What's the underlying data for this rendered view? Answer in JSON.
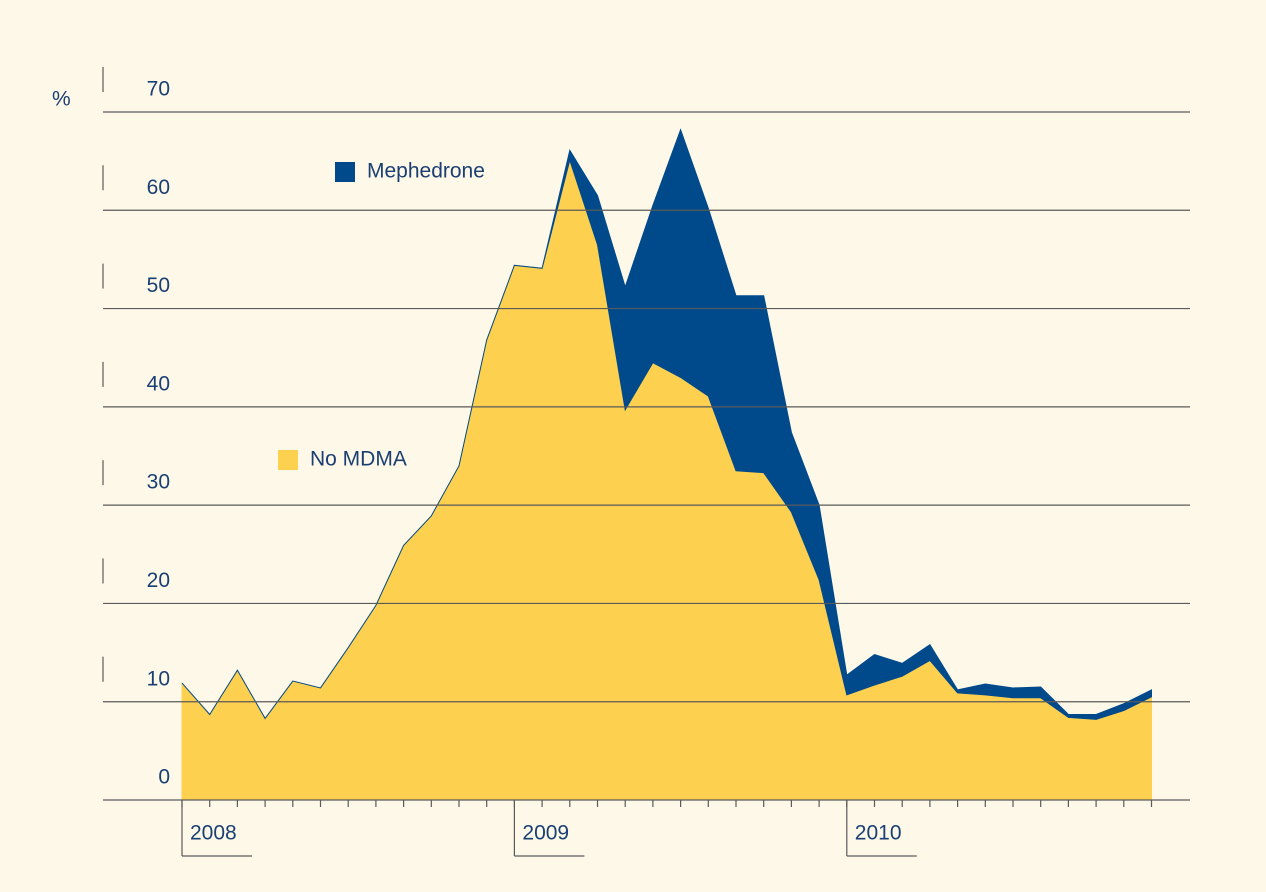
{
  "chart_data": {
    "type": "stacked-area",
    "y_label": "%",
    "categories": [
      "2008",
      null,
      null,
      null,
      null,
      null,
      null,
      null,
      null,
      null,
      null,
      null,
      "2009",
      null,
      null,
      null,
      null,
      null,
      null,
      null,
      null,
      null,
      null,
      null,
      "2010",
      null,
      null,
      null,
      null,
      null,
      null,
      null,
      null,
      null,
      null,
      null
    ],
    "series": [
      {
        "name": "No MDMA",
        "color": "#fdd04f",
        "values": [
          11.9,
          8.7,
          13.2,
          8.3,
          12.1,
          11.4,
          15.5,
          19.8,
          25.9,
          28.9,
          34.0,
          46.8,
          54.4,
          54.1,
          65.1,
          56.5,
          39.7,
          44.5,
          43.0,
          41.1,
          33.5,
          33.3,
          29.3,
          22.4,
          10.7,
          11.7,
          12.6,
          14.2,
          10.9,
          10.7,
          10.4,
          10.4,
          8.4,
          8.2,
          9.1,
          10.5
        ]
      },
      {
        "name": "Mephedrone",
        "color": "#004a8c",
        "values": [
          0,
          0,
          0,
          0,
          0,
          0,
          0,
          0,
          0,
          0,
          0,
          0,
          0,
          0,
          1.0,
          5.0,
          12.5,
          16.0,
          25.2,
          19.1,
          17.8,
          18.0,
          8.1,
          7.6,
          2.0,
          3.1,
          1.3,
          1.6,
          0.3,
          1.1,
          1.0,
          1.1,
          0.3,
          0.5,
          0.7,
          0.7
        ]
      }
    ],
    "ylim": [
      0,
      70
    ],
    "yticks": [
      0,
      10,
      20,
      30,
      40,
      50,
      60,
      70
    ],
    "grid": true
  }
}
